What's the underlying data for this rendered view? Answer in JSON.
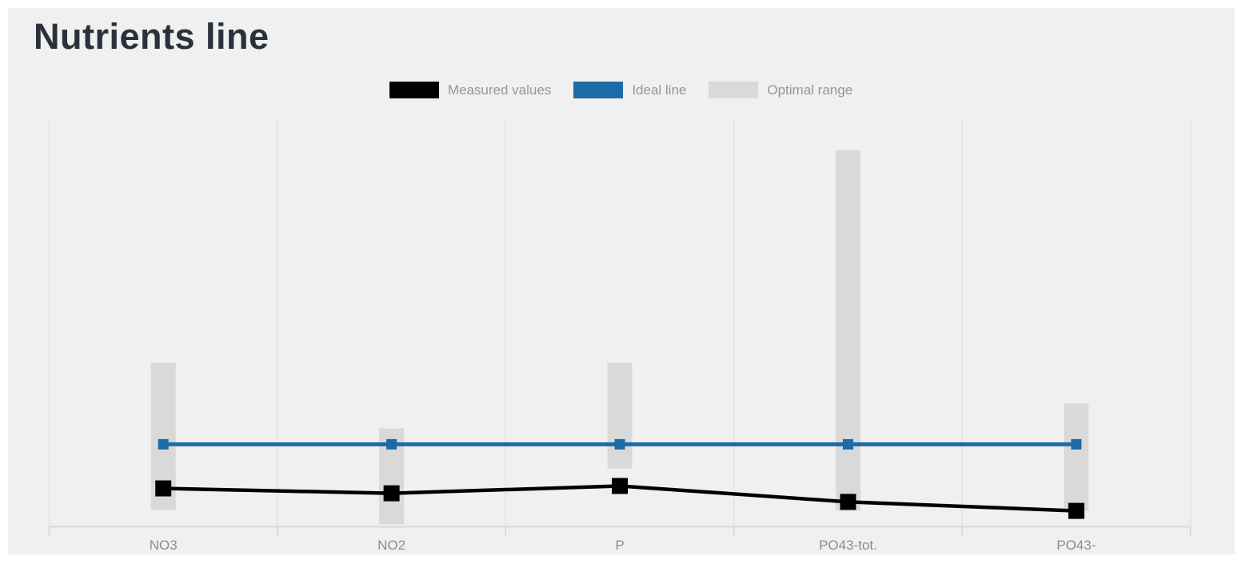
{
  "page": {
    "background_color": "#ffffff",
    "card_background_color": "#f0f0f0"
  },
  "chart": {
    "title": "Nutrients line",
    "title_color": "#2b313b"
  },
  "legend": {
    "text_color": "#969696",
    "items": [
      {
        "label": "Measured values",
        "color": "#000000"
      },
      {
        "label": "Ideal line",
        "color": "#1c6ba7"
      },
      {
        "label": "Optimal range",
        "color": "#d9d9d9"
      }
    ]
  },
  "chart_data": {
    "type": "line",
    "title": "Nutrients line",
    "categories": [
      "NO3",
      "NO2",
      "P",
      "PO43-tot.",
      "PO43-"
    ],
    "x_tick_label_color": "#8d8d8d",
    "grid": "vertical-only",
    "gridline_color": "#e4e4e4",
    "axis_line_color": "#d6d6d6",
    "y_axis_tick_labels_visible": false,
    "y_units": "normalized fraction of plot height (chart shows no numeric y axis)",
    "ylim": [
      0,
      1
    ],
    "legend_position": "top-center",
    "series": [
      {
        "name": "Measured values",
        "type": "line",
        "color": "#000000",
        "marker": "square",
        "values_normalized": [
          0.094,
          0.082,
          0.1,
          0.061,
          0.039
        ]
      },
      {
        "name": "Ideal line",
        "type": "line",
        "color": "#1c6ba7",
        "marker": "square",
        "values_normalized": [
          0.202,
          0.202,
          0.202,
          0.202,
          0.202
        ]
      }
    ],
    "ranges": {
      "name": "Optimal range",
      "type": "vertical-bar-band",
      "color": "#d9d9d9",
      "low_normalized": [
        0.041,
        0.006,
        0.143,
        0.039,
        0.039
      ],
      "high_normalized": [
        0.402,
        0.241,
        0.402,
        0.922,
        0.302
      ]
    }
  }
}
